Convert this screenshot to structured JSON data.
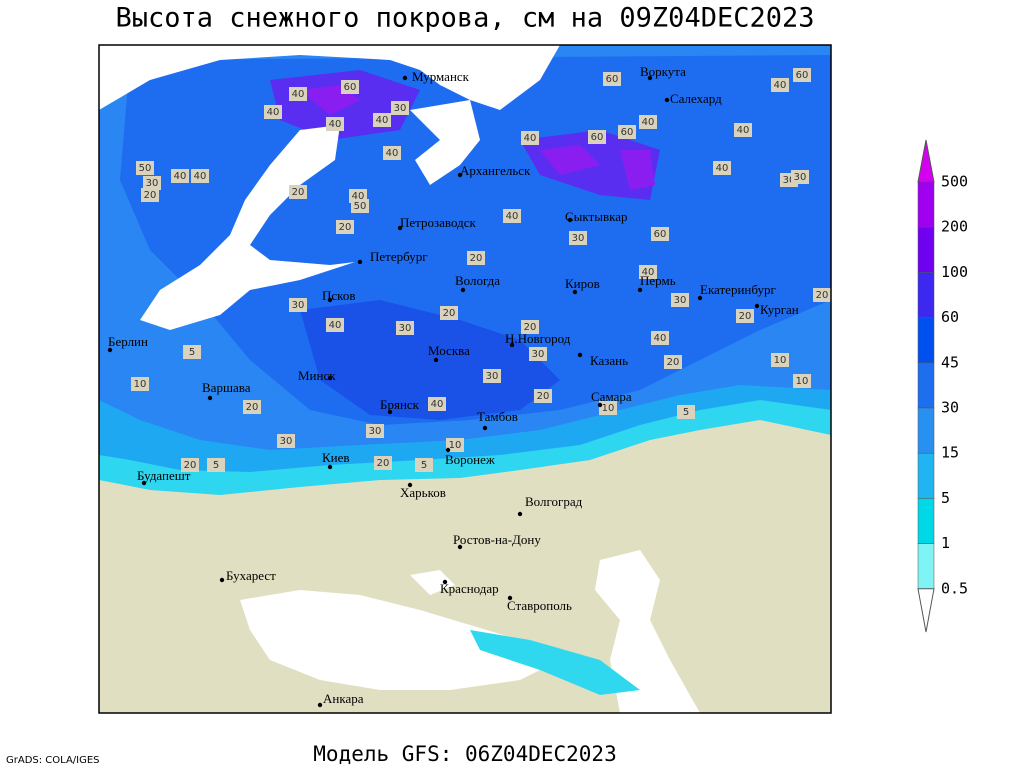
{
  "header": {
    "title": "Высота снежного покрова, см на 09Z04DEC2023"
  },
  "footer": {
    "model": "Модель GFS: 06Z04DEC2023",
    "credit": "GrADS: COLA/IGES"
  },
  "legend": {
    "labels": [
      "500",
      "200",
      "100",
      "60",
      "45",
      "30",
      "15",
      "5",
      "1",
      "0.5"
    ]
  },
  "cities": [
    "Мурманск",
    "Воркута",
    "Салехард",
    "Архангельск",
    "Сыктывкар",
    "Петрозаводск",
    "Петербург",
    "Вологда",
    "Киров",
    "Пермь",
    "Екатеринбург",
    "Курган",
    "Псков",
    "Берлин",
    "Н.Новгород",
    "Москва",
    "Казань",
    "Минск",
    "Варшава",
    "Самара",
    "Брянск",
    "Тамбов",
    "Воронеж",
    "Киев",
    "Будапешт",
    "Харьков",
    "Волгоград",
    "Ростов-на-Дону",
    "Бухарест",
    "Краснодар",
    "Ставрополь",
    "Анкара"
  ],
  "contour_labels": [
    "40",
    "60",
    "40",
    "30",
    "40",
    "40",
    "50",
    "40",
    "40",
    "30",
    "20",
    "20",
    "40",
    "50",
    "40",
    "20",
    "40",
    "30",
    "60",
    "40",
    "30",
    "20",
    "20",
    "60",
    "60",
    "40",
    "40",
    "60",
    "60",
    "40",
    "40",
    "40",
    "30",
    "30",
    "40",
    "30",
    "20",
    "20",
    "30",
    "40",
    "20",
    "10",
    "10",
    "5",
    "10",
    "20",
    "30",
    "40",
    "30",
    "20",
    "30",
    "10",
    "5",
    "20",
    "5",
    "20",
    "5",
    "10",
    "20",
    "30"
  ]
}
